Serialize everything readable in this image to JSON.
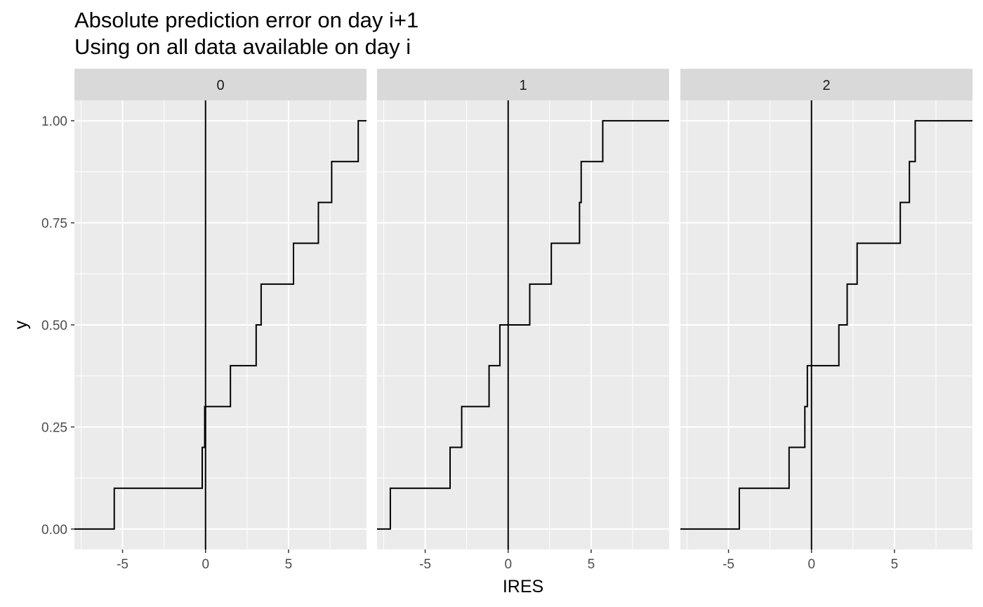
{
  "chart_data": {
    "type": "line",
    "subtype": "ecdf-step",
    "title": "Absolute prediction error on day i+1",
    "subtitle": "Using on all data available on day i",
    "xlabel": "IRES",
    "ylabel": "y",
    "xlim": [
      -7.9,
      9.7
    ],
    "ylim": [
      -0.05,
      1.05
    ],
    "x_ticks": [
      -5,
      0,
      5
    ],
    "x_tick_labels": [
      "-5",
      "0",
      "5"
    ],
    "y_ticks": [
      0,
      0.25,
      0.5,
      0.75,
      1
    ],
    "y_tick_labels": [
      "0.00",
      "0.25",
      "0.50",
      "0.75",
      "1.00"
    ],
    "vline_x": 0,
    "grid": true,
    "facet_var_values": [
      "0",
      "1",
      "2"
    ],
    "panels": [
      {
        "label": "0",
        "x": [
          -5.5,
          -0.2,
          -0.05,
          1.5,
          3.05,
          3.35,
          5.3,
          6.8,
          7.6,
          9.2
        ],
        "y": [
          0.1,
          0.2,
          0.3,
          0.4,
          0.5,
          0.6,
          0.7,
          0.8,
          0.9,
          1.0
        ]
      },
      {
        "label": "1",
        "x": [
          -7.1,
          -3.5,
          -2.8,
          -1.15,
          -0.5,
          1.3,
          2.6,
          4.3,
          4.4,
          5.7
        ],
        "y": [
          0.1,
          0.2,
          0.3,
          0.4,
          0.5,
          0.6,
          0.7,
          0.8,
          0.9,
          1.0
        ]
      },
      {
        "label": "2",
        "x": [
          -4.35,
          -1.35,
          -0.4,
          -0.25,
          1.65,
          2.15,
          2.75,
          5.35,
          5.9,
          6.25
        ],
        "y": [
          0.1,
          0.2,
          0.3,
          0.4,
          0.5,
          0.6,
          0.7,
          0.8,
          0.9,
          1.0
        ]
      }
    ]
  }
}
